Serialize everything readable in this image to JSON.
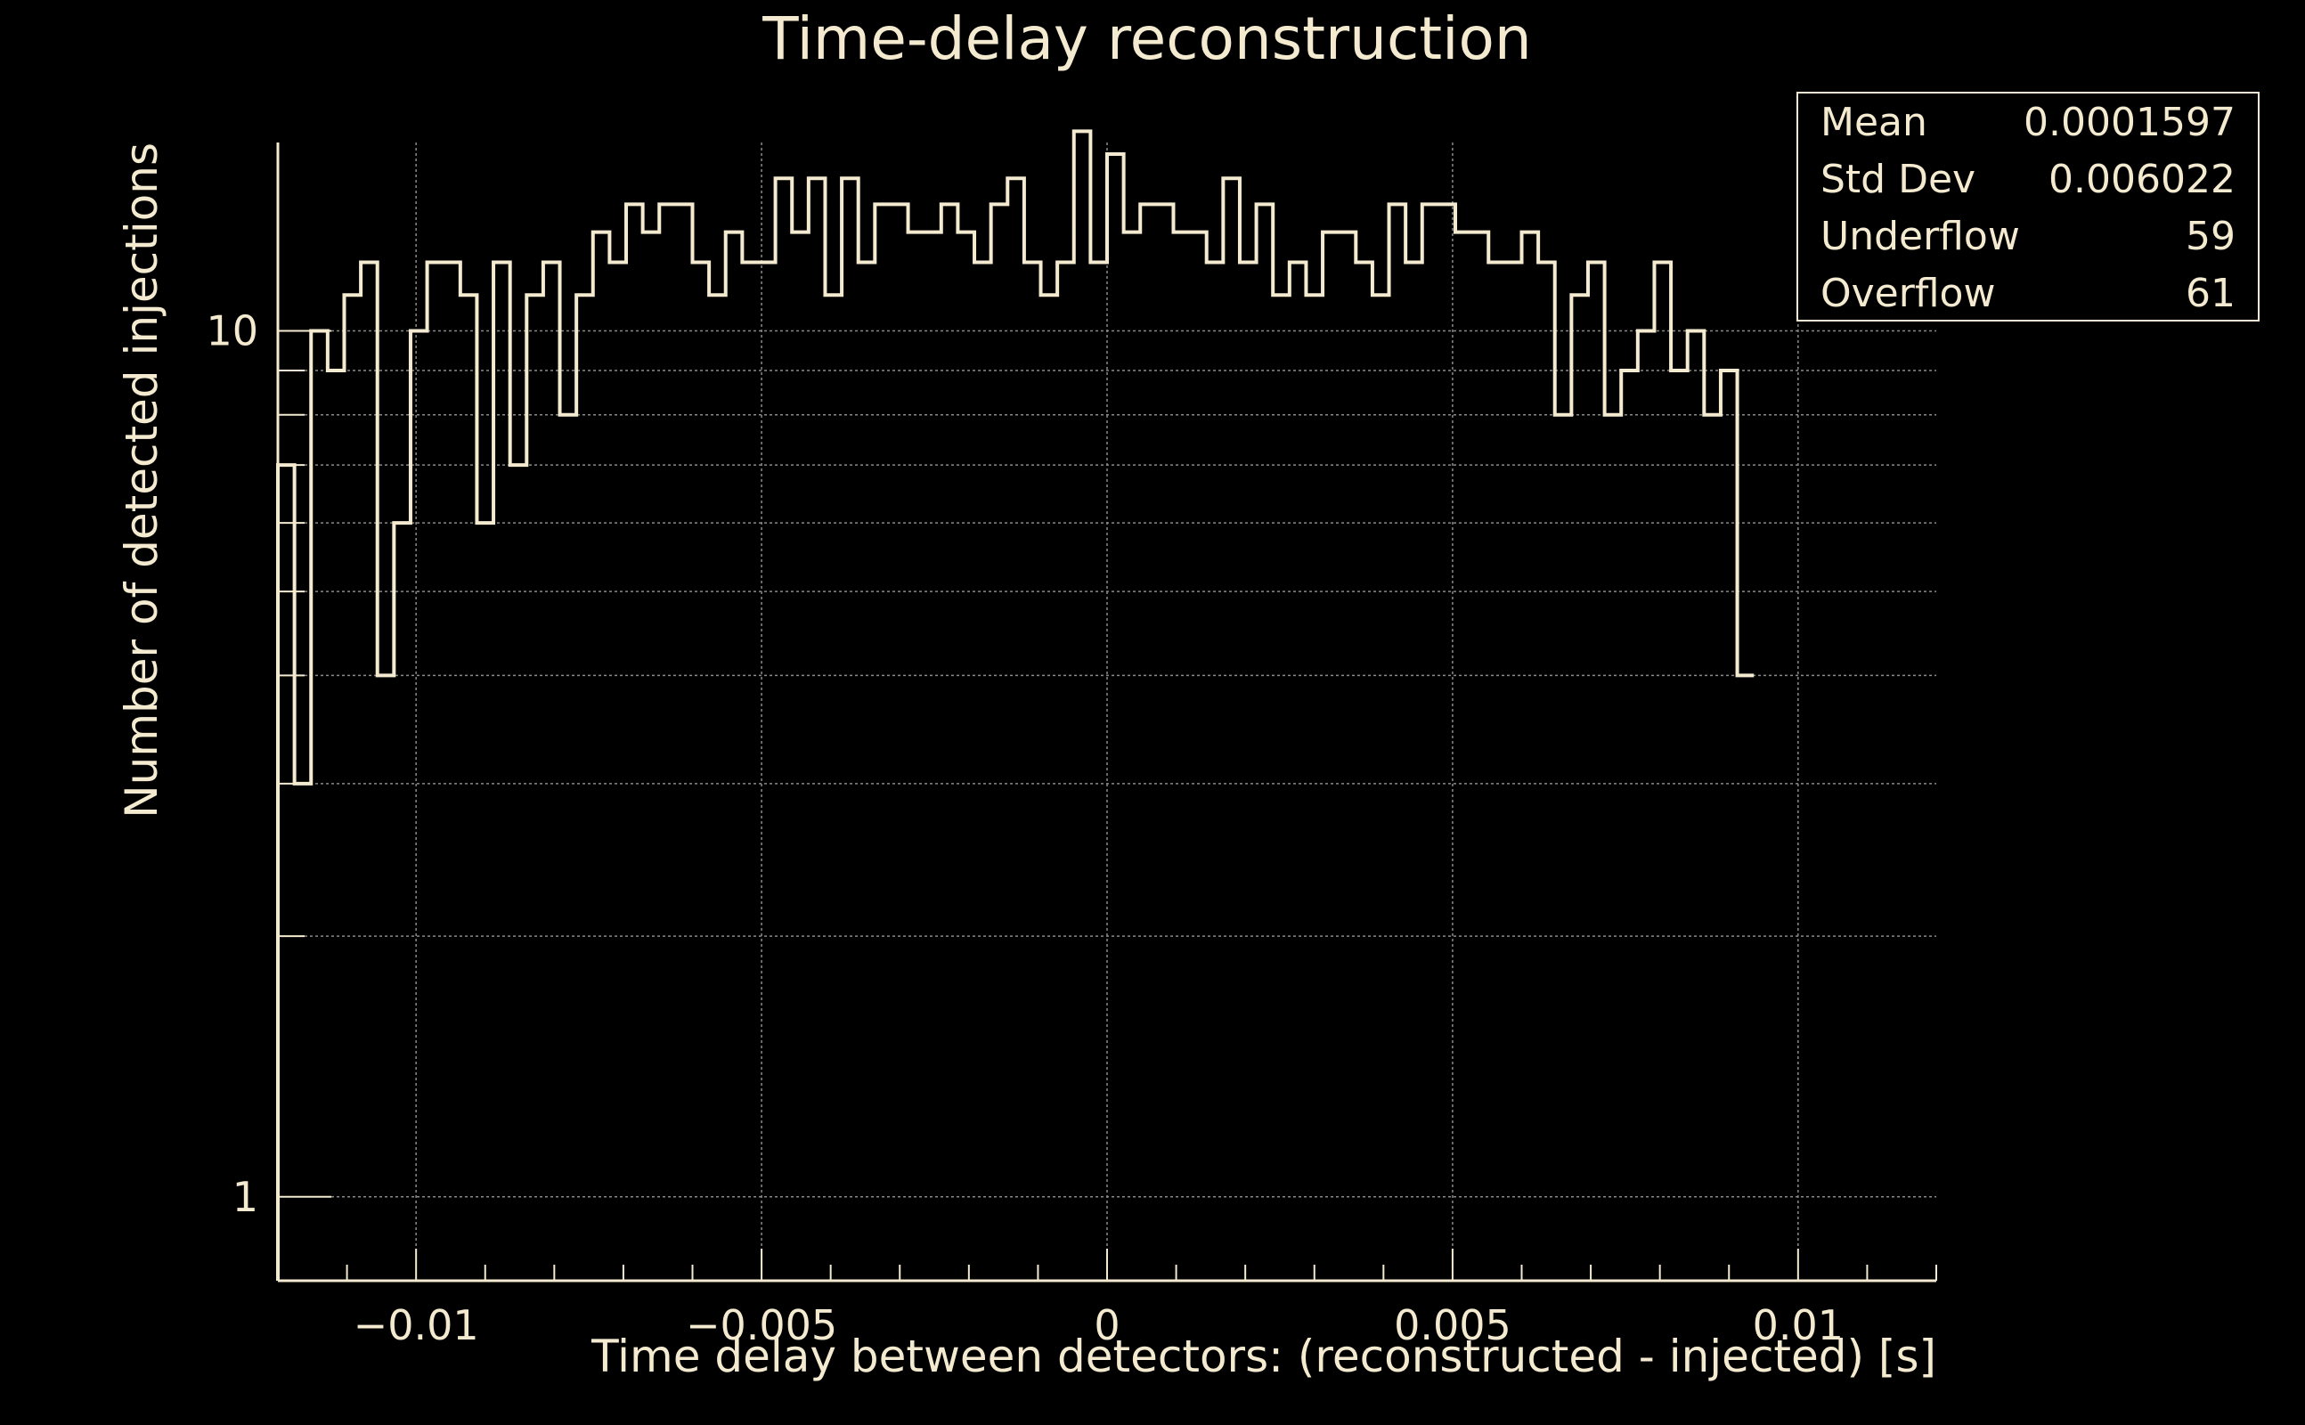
{
  "chart_data": {
    "type": "histogram",
    "title": "Time-delay reconstruction",
    "xlabel": "Time delay between detectors: (reconstructed - injected) [s]",
    "ylabel": "Number of detected injections",
    "y_scale": "log",
    "xlim": [
      -0.012,
      0.012
    ],
    "ylim": [
      0.8,
      16.5
    ],
    "grid": true,
    "line_color": "#f4ead0",
    "background": "#000000",
    "bin_width": 0.00024,
    "x_ticks": [
      {
        "value": -0.01,
        "label": "−0.01"
      },
      {
        "value": -0.005,
        "label": "−0.005"
      },
      {
        "value": 0,
        "label": "0"
      },
      {
        "value": 0.005,
        "label": "0.005"
      },
      {
        "value": 0.01,
        "label": "0.01"
      }
    ],
    "y_ticks": [
      {
        "value": 1,
        "label": "1"
      },
      {
        "value": 10,
        "label": "10"
      }
    ],
    "bin_counts": [
      7,
      3,
      10,
      9,
      11,
      12,
      4,
      6,
      10,
      12,
      12,
      11,
      6,
      12,
      7,
      11,
      12,
      8,
      11,
      13,
      12,
      14,
      13,
      14,
      14,
      12,
      11,
      13,
      12,
      12,
      15,
      13,
      15,
      11,
      15,
      12,
      14,
      14,
      13,
      13,
      14,
      13,
      12,
      14,
      15,
      12,
      11,
      12,
      17,
      12,
      16,
      13,
      14,
      14,
      13,
      13,
      12,
      15,
      12,
      14,
      11,
      12,
      11,
      13,
      13,
      12,
      11,
      14,
      12,
      14,
      14,
      13,
      13,
      12,
      12,
      13,
      12,
      8,
      11,
      12,
      8,
      9,
      10,
      12,
      9,
      10,
      8,
      9,
      4
    ],
    "stats_box": [
      {
        "label": "Mean",
        "value": "0.0001597"
      },
      {
        "label": "Std Dev",
        "value": "0.006022"
      },
      {
        "label": "Underflow",
        "value": "59"
      },
      {
        "label": "Overflow",
        "value": "61"
      }
    ]
  }
}
